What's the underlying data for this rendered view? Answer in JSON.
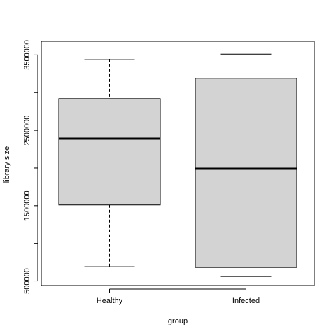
{
  "chart_data": {
    "type": "boxplot",
    "xlabel": "group",
    "ylabel": "library size",
    "categories": [
      "Healthy",
      "Infected"
    ],
    "boxes": [
      {
        "name": "Healthy",
        "min": 690000,
        "q1": 1510000,
        "median": 2390000,
        "q3": 2920000,
        "max": 3440000
      },
      {
        "name": "Infected",
        "min": 560000,
        "q1": 680000,
        "median": 1990000,
        "q3": 3190000,
        "max": 3510000
      }
    ],
    "y_ticks": [
      500000,
      1000000,
      1500000,
      2000000,
      2500000,
      3000000,
      3500000
    ],
    "y_tick_labels": [
      "500000",
      "1500000",
      "2500000",
      "3500000"
    ],
    "ylim": [
      440000,
      3680000
    ],
    "box_fill": "#d3d3d3",
    "grid": false
  }
}
